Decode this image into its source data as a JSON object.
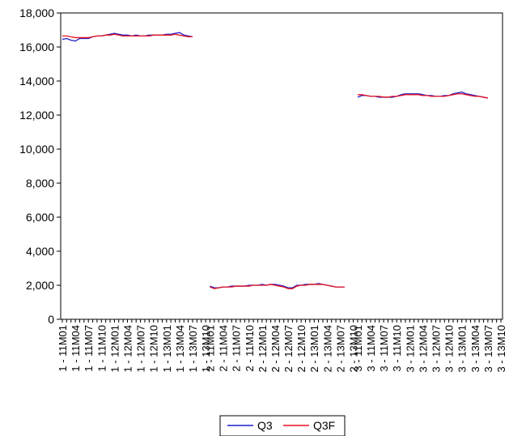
{
  "chart_data": {
    "type": "line",
    "title": "",
    "xlabel": "",
    "ylabel": "",
    "ylim": [
      0,
      18000
    ],
    "yticks": [
      0,
      2000,
      4000,
      6000,
      8000,
      10000,
      12000,
      14000,
      16000,
      18000
    ],
    "ytick_labels": [
      "0",
      "2,000",
      "4,000",
      "6,000",
      "8,000",
      "10,000",
      "12,000",
      "14,000",
      "16,000",
      "18,000"
    ],
    "grid": false,
    "legend": "bottom-center",
    "categories": [
      "1 - 11M01",
      "1 - 11M02",
      "1 - 11M03",
      "1 - 11M04",
      "1 - 11M05",
      "1 - 11M06",
      "1 - 11M07",
      "1 - 11M08",
      "1 - 11M09",
      "1 - 11M10",
      "1 - 11M11",
      "1 - 11M12",
      "1 - 12M01",
      "1 - 12M02",
      "1 - 12M03",
      "1 - 12M04",
      "1 - 12M05",
      "1 - 12M06",
      "1 - 12M07",
      "1 - 12M08",
      "1 - 12M09",
      "1 - 12M10",
      "1 - 12M11",
      "1 - 12M12",
      "1 - 13M01",
      "1 - 13M02",
      "1 - 13M03",
      "1 - 13M04",
      "1 - 13M05",
      "1 - 13M06",
      "1 - 13M07",
      "1 - 13M08",
      "1 - 13M09",
      "1 - 13M10",
      "2 - 11M01",
      "2 - 11M02",
      "2 - 11M03",
      "2 - 11M04",
      "2 - 11M05",
      "2 - 11M06",
      "2 - 11M07",
      "2 - 11M08",
      "2 - 11M09",
      "2 - 11M10",
      "2 - 11M11",
      "2 - 11M12",
      "2 - 12M01",
      "2 - 12M02",
      "2 - 12M03",
      "2 - 12M04",
      "2 - 12M05",
      "2 - 12M06",
      "2 - 12M07",
      "2 - 12M08",
      "2 - 12M09",
      "2 - 12M10",
      "2 - 12M11",
      "2 - 12M12",
      "2 - 13M01",
      "2 - 13M02",
      "2 - 13M03",
      "2 - 13M04",
      "2 - 13M05",
      "2 - 13M06",
      "2 - 13M07",
      "2 - 13M08",
      "2 - 13M09",
      "2 - 13M10",
      "3 - 11M01",
      "3 - 11M02",
      "3 - 11M03",
      "3 - 11M04",
      "3 - 11M05",
      "3 - 11M06",
      "3 - 11M07",
      "3 - 11M08",
      "3 - 11M09",
      "3 - 11M10",
      "3 - 11M11",
      "3 - 11M12",
      "3 - 12M01",
      "3 - 12M02",
      "3 - 12M03",
      "3 - 12M04",
      "3 - 12M05",
      "3 - 12M06",
      "3 - 12M07",
      "3 - 12M08",
      "3 - 12M09",
      "3 - 12M10",
      "3 - 12M11",
      "3 - 12M12",
      "3 - 13M01",
      "3 - 13M02",
      "3 - 13M03",
      "3 - 13M04",
      "3 - 13M05",
      "3 - 13M06",
      "3 - 13M07",
      "3 - 13M08",
      "3 - 13M09",
      "3 - 13M10"
    ],
    "shown_tick_labels": [
      "1 - 11M01",
      "1 - 11M04",
      "1 - 11M07",
      "1 - 11M10",
      "1 - 12M01",
      "1 - 12M04",
      "1 - 12M07",
      "1 - 12M10",
      "1 - 13M01",
      "1 - 13M04",
      "1 - 13M07",
      "1 - 13M10",
      "2 - 11M01",
      "2 - 11M04",
      "2 - 11M07",
      "2 - 11M10",
      "2 - 12M01",
      "2 - 12M04",
      "2 - 12M07",
      "2 - 12M10",
      "2 - 13M01",
      "2 - 13M04",
      "2 - 13M07",
      "2 - 13M10",
      "3 - 11M01",
      "3 - 11M04",
      "3 - 11M07",
      "3 - 11M10",
      "3 - 12M01",
      "3 - 12M04",
      "3 - 12M07",
      "3 - 12M10",
      "3 - 13M01",
      "3 - 13M04",
      "3 - 13M07",
      "3 - 13M10"
    ],
    "series": [
      {
        "name": "Q3",
        "color": "#1f1fc8",
        "values": [
          16450,
          16500,
          16400,
          16350,
          16500,
          16500,
          16500,
          16600,
          16650,
          16650,
          16700,
          16750,
          16800,
          16750,
          16700,
          16700,
          16650,
          16700,
          16650,
          16650,
          16700,
          16700,
          16700,
          16700,
          16750,
          16750,
          16800,
          16850,
          16700,
          16650,
          16600,
          null,
          null,
          null,
          1950,
          1850,
          1850,
          1900,
          1900,
          1950,
          1950,
          1950,
          1950,
          2000,
          2000,
          2000,
          2050,
          2000,
          2050,
          2050,
          2000,
          1950,
          1850,
          1850,
          2000,
          2000,
          2050,
          2050,
          2050,
          2100,
          2050,
          2000,
          1950,
          1900,
          1900,
          1900,
          null,
          null,
          13050,
          13150,
          13150,
          13100,
          13100,
          13050,
          13050,
          13050,
          13050,
          13100,
          13200,
          13250,
          13250,
          13250,
          13250,
          13200,
          13150,
          13150,
          13100,
          13100,
          13150,
          13150,
          13250,
          13300,
          13350,
          13250,
          13200,
          13150,
          13100,
          13050,
          13000,
          null,
          null,
          null
        ]
      },
      {
        "name": "Q3F",
        "color": "#e81020",
        "values": [
          16650,
          16650,
          16600,
          16550,
          16550,
          16550,
          16550,
          16600,
          16650,
          16650,
          16700,
          16700,
          16750,
          16700,
          16650,
          16650,
          16650,
          16650,
          16650,
          16650,
          16650,
          16700,
          16700,
          16700,
          16700,
          16700,
          16750,
          16700,
          16650,
          16600,
          16600,
          null,
          null,
          null,
          1900,
          1800,
          1850,
          1900,
          1900,
          1900,
          1950,
          1950,
          1950,
          1950,
          2000,
          2000,
          2000,
          2000,
          2050,
          2000,
          1950,
          1900,
          1800,
          1800,
          1950,
          2000,
          2000,
          2050,
          2050,
          2050,
          2050,
          2000,
          1950,
          1900,
          1900,
          1900,
          null,
          null,
          13200,
          13200,
          13150,
          13100,
          13100,
          13100,
          13050,
          13050,
          13100,
          13100,
          13150,
          13200,
          13200,
          13200,
          13200,
          13150,
          13150,
          13100,
          13100,
          13100,
          13100,
          13150,
          13200,
          13250,
          13250,
          13200,
          13150,
          13100,
          13100,
          13050,
          13000,
          null,
          null,
          null
        ]
      }
    ]
  }
}
